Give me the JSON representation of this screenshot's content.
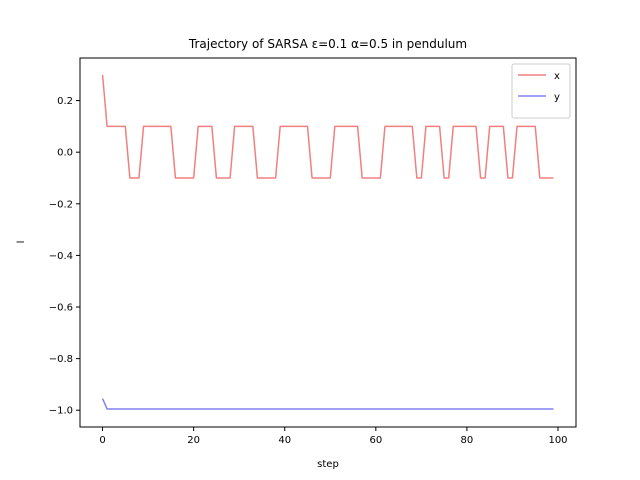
{
  "chart_data": {
    "type": "line",
    "title": "Trajectory of SARSA ε=0.1 α=0.5 in pendulum",
    "xlabel": "step",
    "ylabel": "l",
    "xlim": [
      -4.95,
      103.95
    ],
    "ylim": [
      -1.065,
      0.365
    ],
    "xticks": [
      0,
      20,
      40,
      60,
      80,
      100
    ],
    "yticks": [
      0.2,
      0.0,
      -0.2,
      -0.4,
      -0.6,
      -0.8,
      -1.0
    ],
    "xtick_labels": [
      "0",
      "20",
      "40",
      "60",
      "80",
      "100"
    ],
    "ytick_labels": [
      "0.2",
      "0.0",
      "−0.2",
      "−0.4",
      "−0.6",
      "−0.8",
      "−1.0"
    ],
    "grid": false,
    "legend_position": "top-right",
    "series": [
      {
        "name": "x",
        "color": "#f08080",
        "x": [
          0,
          1,
          2,
          3,
          4,
          5,
          6,
          7,
          8,
          9,
          10,
          11,
          12,
          13,
          14,
          15,
          16,
          17,
          18,
          19,
          20,
          21,
          22,
          23,
          24,
          25,
          26,
          27,
          28,
          29,
          30,
          31,
          32,
          33,
          34,
          35,
          36,
          37,
          38,
          39,
          40,
          41,
          42,
          43,
          44,
          45,
          46,
          47,
          48,
          49,
          50,
          51,
          52,
          53,
          54,
          55,
          56,
          57,
          58,
          59,
          60,
          61,
          62,
          63,
          64,
          65,
          66,
          67,
          68,
          69,
          70,
          71,
          72,
          73,
          74,
          75,
          76,
          77,
          78,
          79,
          80,
          81,
          82,
          83,
          84,
          85,
          86,
          87,
          88,
          89,
          90,
          91,
          92,
          93,
          94,
          95,
          96,
          97,
          98,
          99
        ],
        "y": [
          0.3,
          0.1,
          0.1,
          0.1,
          0.1,
          0.1,
          -0.1,
          -0.1,
          -0.1,
          0.1,
          0.1,
          0.1,
          0.1,
          0.1,
          0.1,
          0.1,
          -0.1,
          -0.1,
          -0.1,
          -0.1,
          -0.1,
          0.1,
          0.1,
          0.1,
          0.1,
          -0.1,
          -0.1,
          -0.1,
          -0.1,
          0.1,
          0.1,
          0.1,
          0.1,
          0.1,
          -0.1,
          -0.1,
          -0.1,
          -0.1,
          -0.1,
          0.1,
          0.1,
          0.1,
          0.1,
          0.1,
          0.1,
          0.1,
          -0.1,
          -0.1,
          -0.1,
          -0.1,
          -0.1,
          0.1,
          0.1,
          0.1,
          0.1,
          0.1,
          0.1,
          -0.1,
          -0.1,
          -0.1,
          -0.1,
          -0.1,
          0.1,
          0.1,
          0.1,
          0.1,
          0.1,
          0.1,
          0.1,
          -0.1,
          -0.1,
          0.1,
          0.1,
          0.1,
          0.1,
          -0.1,
          -0.1,
          0.1,
          0.1,
          0.1,
          0.1,
          0.1,
          0.1,
          -0.1,
          -0.1,
          0.1,
          0.1,
          0.1,
          0.1,
          -0.1,
          -0.1,
          0.1,
          0.1,
          0.1,
          0.1,
          0.1,
          -0.1,
          -0.1,
          -0.1,
          -0.1
        ]
      },
      {
        "name": "y",
        "color": "#8080f0",
        "x": [
          0,
          1,
          2,
          3,
          4,
          5,
          6,
          7,
          8,
          9,
          10,
          11,
          12,
          13,
          14,
          15,
          16,
          17,
          18,
          19,
          20,
          21,
          22,
          23,
          24,
          25,
          26,
          27,
          28,
          29,
          30,
          31,
          32,
          33,
          34,
          35,
          36,
          37,
          38,
          39,
          40,
          41,
          42,
          43,
          44,
          45,
          46,
          47,
          48,
          49,
          50,
          51,
          52,
          53,
          54,
          55,
          56,
          57,
          58,
          59,
          60,
          61,
          62,
          63,
          64,
          65,
          66,
          67,
          68,
          69,
          70,
          71,
          72,
          73,
          74,
          75,
          76,
          77,
          78,
          79,
          80,
          81,
          82,
          83,
          84,
          85,
          86,
          87,
          88,
          89,
          90,
          91,
          92,
          93,
          94,
          95,
          96,
          97,
          98,
          99
        ],
        "y": [
          -0.955,
          -0.995,
          -0.995,
          -0.995,
          -0.995,
          -0.995,
          -0.995,
          -0.995,
          -0.995,
          -0.995,
          -0.995,
          -0.995,
          -0.995,
          -0.995,
          -0.995,
          -0.995,
          -0.995,
          -0.995,
          -0.995,
          -0.995,
          -0.995,
          -0.995,
          -0.995,
          -0.995,
          -0.995,
          -0.995,
          -0.995,
          -0.995,
          -0.995,
          -0.995,
          -0.995,
          -0.995,
          -0.995,
          -0.995,
          -0.995,
          -0.995,
          -0.995,
          -0.995,
          -0.995,
          -0.995,
          -0.995,
          -0.995,
          -0.995,
          -0.995,
          -0.995,
          -0.995,
          -0.995,
          -0.995,
          -0.995,
          -0.995,
          -0.995,
          -0.995,
          -0.995,
          -0.995,
          -0.995,
          -0.995,
          -0.995,
          -0.995,
          -0.995,
          -0.995,
          -0.995,
          -0.995,
          -0.995,
          -0.995,
          -0.995,
          -0.995,
          -0.995,
          -0.995,
          -0.995,
          -0.995,
          -0.995,
          -0.995,
          -0.995,
          -0.995,
          -0.995,
          -0.995,
          -0.995,
          -0.995,
          -0.995,
          -0.995,
          -0.995,
          -0.995,
          -0.995,
          -0.995,
          -0.995,
          -0.995,
          -0.995,
          -0.995,
          -0.995,
          -0.995,
          -0.995,
          -0.995,
          -0.995,
          -0.995,
          -0.995,
          -0.995,
          -0.995,
          -0.995,
          -0.995,
          -0.995
        ]
      }
    ]
  }
}
